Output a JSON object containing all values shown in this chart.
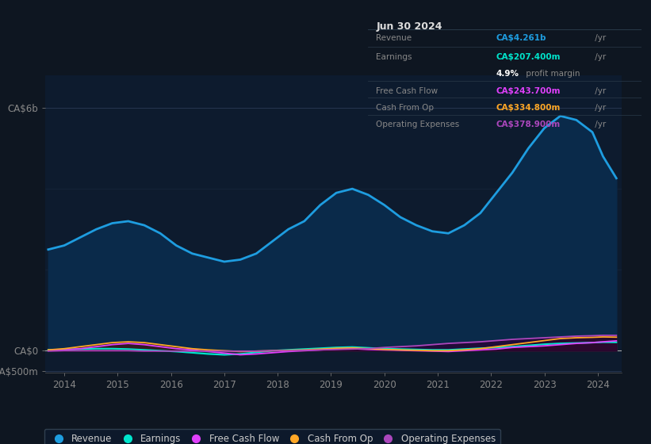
{
  "bg_color": "#0e1621",
  "chart_bg": "#0d1b2e",
  "right_panel_bg": "#111e30",
  "info_box": {
    "title": "Jun 30 2024",
    "rows": [
      {
        "label": "Revenue",
        "value": "CA$4.261b",
        "suffix": " /yr",
        "color": "#1e9de0"
      },
      {
        "label": "Earnings",
        "value": "CA$207.400m",
        "suffix": " /yr",
        "color": "#00e5cc"
      },
      {
        "label": "",
        "value": "4.9%",
        "suffix": " profit margin",
        "color": "#cccccc"
      },
      {
        "label": "Free Cash Flow",
        "value": "CA$243.700m",
        "suffix": " /yr",
        "color": "#e040fb"
      },
      {
        "label": "Cash From Op",
        "value": "CA$334.800m",
        "suffix": " /yr",
        "color": "#ffa726"
      },
      {
        "label": "Operating Expenses",
        "value": "CA$378.900m",
        "suffix": " /yr",
        "color": "#ab47bc"
      }
    ]
  },
  "years": [
    2013.7,
    2014.0,
    2014.3,
    2014.6,
    2014.9,
    2015.2,
    2015.5,
    2015.8,
    2016.1,
    2016.4,
    2016.7,
    2017.0,
    2017.3,
    2017.6,
    2017.9,
    2018.2,
    2018.5,
    2018.8,
    2019.1,
    2019.4,
    2019.7,
    2020.0,
    2020.3,
    2020.6,
    2020.9,
    2021.2,
    2021.5,
    2021.8,
    2022.1,
    2022.4,
    2022.7,
    2023.0,
    2023.3,
    2023.6,
    2023.9,
    2024.1,
    2024.35
  ],
  "revenue": [
    2.5,
    2.6,
    2.8,
    3.0,
    3.15,
    3.2,
    3.1,
    2.9,
    2.6,
    2.4,
    2.3,
    2.2,
    2.25,
    2.4,
    2.7,
    3.0,
    3.2,
    3.6,
    3.9,
    4.0,
    3.85,
    3.6,
    3.3,
    3.1,
    2.95,
    2.9,
    3.1,
    3.4,
    3.9,
    4.4,
    5.0,
    5.5,
    5.8,
    5.7,
    5.4,
    4.8,
    4.261
  ],
  "earnings": [
    0.02,
    0.03,
    0.04,
    0.05,
    0.05,
    0.04,
    0.02,
    0.0,
    -0.02,
    -0.05,
    -0.08,
    -0.1,
    -0.08,
    -0.04,
    0.0,
    0.02,
    0.04,
    0.06,
    0.08,
    0.09,
    0.07,
    0.05,
    0.04,
    0.03,
    0.02,
    0.02,
    0.04,
    0.06,
    0.08,
    0.1,
    0.13,
    0.16,
    0.18,
    0.19,
    0.2,
    0.21,
    0.207
  ],
  "free_cf": [
    0.01,
    0.02,
    0.05,
    0.1,
    0.15,
    0.18,
    0.15,
    0.1,
    0.05,
    0.02,
    -0.02,
    -0.06,
    -0.1,
    -0.08,
    -0.05,
    -0.02,
    0.0,
    0.02,
    0.04,
    0.05,
    0.03,
    0.02,
    0.01,
    0.0,
    -0.01,
    -0.02,
    0.0,
    0.02,
    0.04,
    0.08,
    0.1,
    0.12,
    0.15,
    0.18,
    0.2,
    0.22,
    0.2437
  ],
  "cash_op": [
    0.02,
    0.05,
    0.1,
    0.15,
    0.2,
    0.22,
    0.2,
    0.15,
    0.1,
    0.05,
    0.02,
    0.0,
    -0.02,
    -0.01,
    0.0,
    0.01,
    0.02,
    0.04,
    0.06,
    0.07,
    0.05,
    0.03,
    0.02,
    0.01,
    0.0,
    0.0,
    0.02,
    0.05,
    0.1,
    0.15,
    0.2,
    0.25,
    0.3,
    0.32,
    0.33,
    0.34,
    0.3348
  ],
  "op_exp": [
    -0.01,
    0.0,
    0.0,
    0.0,
    0.0,
    0.0,
    -0.01,
    -0.01,
    -0.01,
    -0.01,
    -0.01,
    -0.01,
    -0.01,
    -0.01,
    0.0,
    0.0,
    0.01,
    0.02,
    0.03,
    0.04,
    0.05,
    0.08,
    0.1,
    0.12,
    0.15,
    0.18,
    0.2,
    0.22,
    0.25,
    0.28,
    0.3,
    0.32,
    0.34,
    0.36,
    0.37,
    0.38,
    0.3789
  ],
  "ylim": [
    -0.55,
    6.8
  ],
  "y_zero": 0.0,
  "y_top": 6.0,
  "y_bot": -0.5,
  "xticks": [
    2014,
    2015,
    2016,
    2017,
    2018,
    2019,
    2020,
    2021,
    2022,
    2023,
    2024
  ],
  "colors": {
    "revenue": "#1e9de0",
    "revenue_fill": "#0a2a4a",
    "earnings": "#00e5cc",
    "earnings_fill": "#004d45",
    "free_cf": "#e040fb",
    "free_cf_fill": "#4a004a",
    "cash_op": "#ffa726",
    "cash_op_fill": "#3a2000",
    "op_exp": "#ab47bc",
    "op_exp_fill": "#2a0033"
  },
  "legend": [
    {
      "label": "Revenue",
      "color": "#1e9de0"
    },
    {
      "label": "Earnings",
      "color": "#00e5cc"
    },
    {
      "label": "Free Cash Flow",
      "color": "#e040fb"
    },
    {
      "label": "Cash From Op",
      "color": "#ffa726"
    },
    {
      "label": "Operating Expenses",
      "color": "#ab47bc"
    }
  ]
}
